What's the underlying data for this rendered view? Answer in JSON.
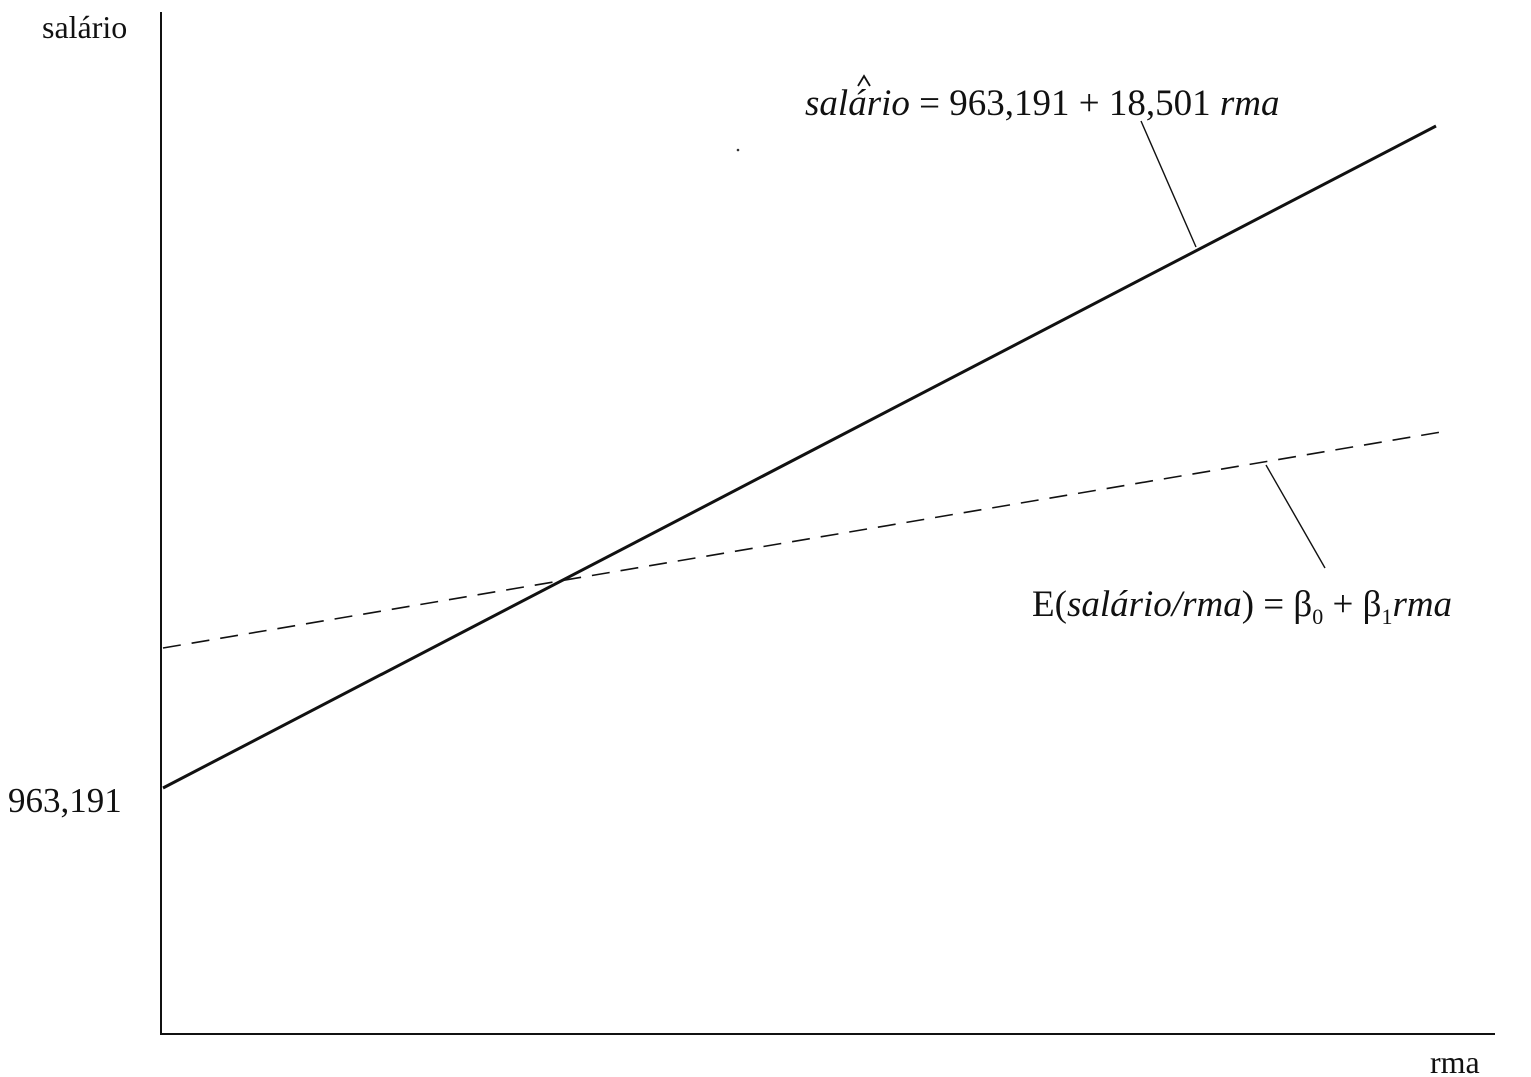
{
  "chart_data": {
    "type": "line",
    "ylabel": "salário",
    "xlabel": "rma",
    "intercept_label": "963,191",
    "grid": false,
    "series": [
      {
        "name": "salário estimado",
        "style": "solid",
        "intercept": 963.191,
        "slope": 18.501,
        "label": {
          "yhat_text": "salâ̂rio",
          "yhat_letters": [
            "sal",
            "á",
            "rio"
          ],
          "equals": " = 963,191 + 18,501 ",
          "var": "rma"
        }
      },
      {
        "name": "E(salário/rma)",
        "style": "dashed",
        "label": {
          "prefix": "E(",
          "cond": "salário/rma",
          "close": ") = ",
          "b0": "β",
          "b0_sub": "0",
          "plus": " + ",
          "b1": "β",
          "b1_sub": "1",
          "var": "rma"
        }
      }
    ]
  }
}
